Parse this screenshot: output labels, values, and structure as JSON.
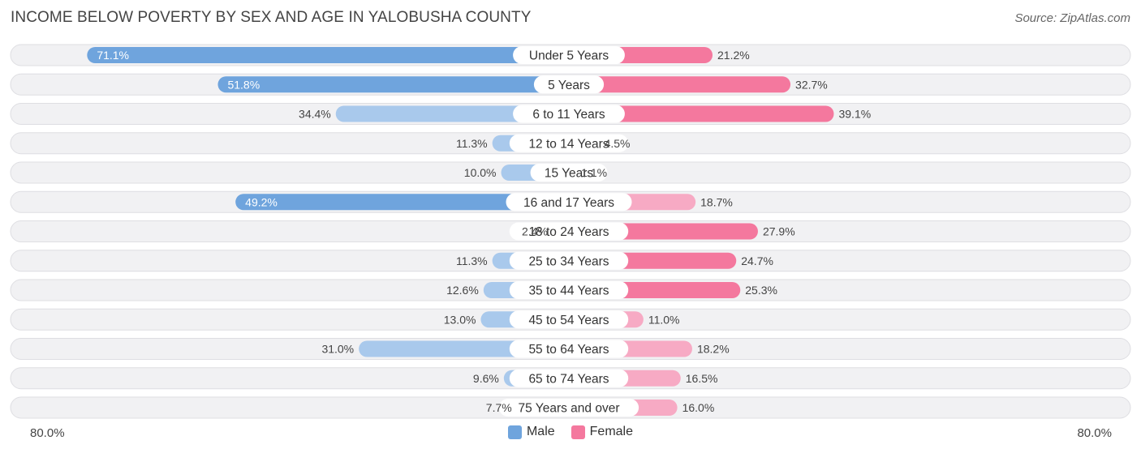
{
  "title": "INCOME BELOW POVERTY BY SEX AND AGE IN YALOBUSHA COUNTY",
  "source": "Source: ZipAtlas.com",
  "colors": {
    "male_strong": "#6fa4dd",
    "male_light": "#a9c9ec",
    "female_strong": "#f4789e",
    "female_light": "#f7aac4",
    "row_bg": "#f1f1f3",
    "row_border": "#dedee2"
  },
  "axis": {
    "left_label": "80.0%",
    "right_label": "80.0%"
  },
  "legend": [
    {
      "name": "Male",
      "color": "#6fa4dd"
    },
    {
      "name": "Female",
      "color": "#f4789e"
    }
  ],
  "chart_data": {
    "type": "bar",
    "orientation": "horizontal-diverging",
    "title": "INCOME BELOW POVERTY BY SEX AND AGE IN YALOBUSHA COUNTY",
    "xlim": [
      -80,
      80
    ],
    "categories": [
      "Under 5 Years",
      "5 Years",
      "6 to 11 Years",
      "12 to 14 Years",
      "15 Years",
      "16 and 17 Years",
      "18 to 24 Years",
      "25 to 34 Years",
      "35 to 44 Years",
      "45 to 54 Years",
      "55 to 64 Years",
      "65 to 74 Years",
      "75 Years and over"
    ],
    "series": [
      {
        "name": "Male",
        "values": [
          71.1,
          51.8,
          34.4,
          11.3,
          10.0,
          49.2,
          2.4,
          11.3,
          12.6,
          13.0,
          31.0,
          9.6,
          7.7
        ],
        "labels": [
          "71.1%",
          "51.8%",
          "34.4%",
          "11.3%",
          "10.0%",
          "49.2%",
          "2.4%",
          "11.3%",
          "12.6%",
          "13.0%",
          "31.0%",
          "9.6%",
          "7.7%"
        ]
      },
      {
        "name": "Female",
        "values": [
          21.2,
          32.7,
          39.1,
          4.5,
          1.1,
          18.7,
          27.9,
          24.7,
          25.3,
          11.0,
          18.2,
          16.5,
          16.0
        ],
        "labels": [
          "21.2%",
          "32.7%",
          "39.1%",
          "4.5%",
          "1.1%",
          "18.7%",
          "27.9%",
          "24.7%",
          "25.3%",
          "11.0%",
          "18.2%",
          "16.5%",
          "16.0%"
        ]
      }
    ],
    "legend_position": "bottom-center"
  }
}
